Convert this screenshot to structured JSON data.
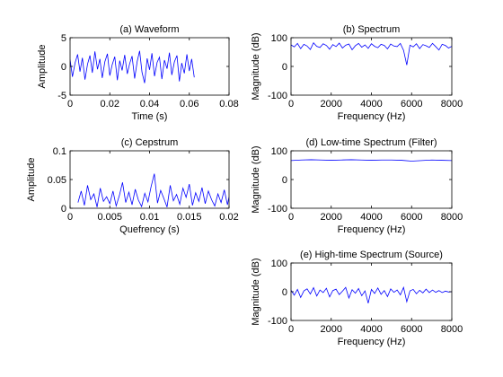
{
  "figure": {
    "background": "#ffffff",
    "line_color": "#0000ff",
    "axes_color": "#000000"
  },
  "chart_data": [
    {
      "id": "a",
      "type": "line",
      "title": "(a) Waveform",
      "xlabel": "Time (s)",
      "ylabel": "Amplitude",
      "xlim": [
        0,
        0.08
      ],
      "ylim": [
        -5,
        5
      ],
      "xticks": [
        "0",
        "0.02",
        "0.04",
        "0.06",
        "0.08"
      ],
      "xtick_values": [
        0,
        0.02,
        0.04,
        0.06,
        0.08
      ],
      "yticks": [
        "-5",
        "0",
        "5"
      ],
      "ytick_values": [
        -5,
        0,
        5
      ],
      "grid": false,
      "series": [
        {
          "x": [
            0,
            0.0012,
            0.0025,
            0.0038,
            0.005,
            0.0062,
            0.0075,
            0.0088,
            0.01,
            0.0112,
            0.0125,
            0.0138,
            0.015,
            0.0162,
            0.0175,
            0.0188,
            0.02,
            0.0212,
            0.0225,
            0.0238,
            0.025,
            0.0262,
            0.0275,
            0.0288,
            0.03,
            0.0312,
            0.0325,
            0.0338,
            0.035,
            0.0362,
            0.0375,
            0.0388,
            0.04,
            0.0412,
            0.0425,
            0.0438,
            0.045,
            0.0462,
            0.0475,
            0.0488,
            0.05,
            0.0512,
            0.0525,
            0.0538,
            0.055,
            0.0562,
            0.0575,
            0.0588,
            0.06,
            0.0612,
            0.0625
          ],
          "y": [
            1.2,
            -1.8,
            0.6,
            2.1,
            -0.9,
            1.5,
            -2.3,
            0.4,
            1.9,
            -1.1,
            2.6,
            -0.5,
            1.3,
            -2.0,
            0.8,
            2.2,
            -1.6,
            0.3,
            1.7,
            -2.4,
            1.0,
            -0.7,
            2.0,
            -1.3,
            0.5,
            1.8,
            -2.1,
            0.9,
            2.7,
            -1.0,
            -2.9,
            1.4,
            -0.6,
            2.3,
            -1.7,
            0.7,
            1.6,
            -2.2,
            1.1,
            -0.4,
            2.4,
            -1.5,
            0.8,
            1.9,
            -2.6,
            0.6,
            -1.2,
            2.1,
            -0.8,
            1.3,
            -1.9
          ]
        }
      ]
    },
    {
      "id": "b",
      "type": "line",
      "title": "(b) Spectrum",
      "xlabel": "Frequency (Hz)",
      "ylabel": "Magnitude (dB)",
      "xlim": [
        0,
        8000
      ],
      "ylim": [
        -100,
        100
      ],
      "xticks": [
        "0",
        "2000",
        "4000",
        "6000",
        "8000"
      ],
      "xtick_values": [
        0,
        2000,
        4000,
        6000,
        8000
      ],
      "yticks": [
        "-100",
        "0",
        "100"
      ],
      "ytick_values": [
        -100,
        0,
        100
      ],
      "grid": false,
      "series": [
        {
          "x": [
            0,
            160,
            320,
            480,
            640,
            800,
            960,
            1120,
            1280,
            1440,
            1600,
            1760,
            1920,
            2080,
            2240,
            2400,
            2560,
            2720,
            2880,
            3040,
            3200,
            3360,
            3520,
            3680,
            3840,
            4000,
            4160,
            4320,
            4480,
            4640,
            4800,
            4960,
            5120,
            5280,
            5440,
            5600,
            5760,
            5920,
            6080,
            6240,
            6400,
            6560,
            6720,
            6880,
            7040,
            7200,
            7360,
            7520,
            7680,
            7840,
            8000
          ],
          "y": [
            75,
            68,
            80,
            62,
            77,
            71,
            59,
            82,
            70,
            66,
            79,
            73,
            60,
            76,
            69,
            81,
            64,
            74,
            78,
            58,
            72,
            80,
            67,
            75,
            63,
            79,
            70,
            65,
            77,
            73,
            61,
            78,
            71,
            69,
            80,
            56,
            5,
            74,
            68,
            79,
            62,
            76,
            72,
            66,
            80,
            69,
            57,
            77,
            73,
            64,
            70
          ]
        }
      ]
    },
    {
      "id": "c",
      "type": "line",
      "title": "(c) Cepstrum",
      "xlabel": "Quefrency (s)",
      "ylabel": "Amplitude",
      "xlim": [
        0,
        0.02
      ],
      "ylim": [
        0,
        0.1
      ],
      "xticks": [
        "0",
        "0.005",
        "0.01",
        "0.015",
        "0.02"
      ],
      "xtick_values": [
        0,
        0.005,
        0.01,
        0.015,
        0.02
      ],
      "yticks": [
        "0",
        "0.05",
        "0.1"
      ],
      "ytick_values": [
        0,
        0.05,
        0.1
      ],
      "grid": false,
      "series": [
        {
          "x": [
            0.001,
            0.0014,
            0.0018,
            0.0022,
            0.0026,
            0.003,
            0.0034,
            0.0038,
            0.0042,
            0.0046,
            0.005,
            0.0054,
            0.0058,
            0.0062,
            0.0066,
            0.007,
            0.0074,
            0.0078,
            0.0082,
            0.0086,
            0.009,
            0.0094,
            0.0098,
            0.0102,
            0.0106,
            0.011,
            0.0114,
            0.0118,
            0.0122,
            0.0126,
            0.013,
            0.0134,
            0.0138,
            0.0142,
            0.0146,
            0.015,
            0.0154,
            0.0158,
            0.0162,
            0.0166,
            0.017,
            0.0174,
            0.0178,
            0.0182,
            0.0186,
            0.019,
            0.0194,
            0.0198,
            0.02
          ],
          "y": [
            0.01,
            0.03,
            0.005,
            0.04,
            0.015,
            0.025,
            0.002,
            0.035,
            0.012,
            0.02,
            0.008,
            0.03,
            0.004,
            0.022,
            0.045,
            0.01,
            0.028,
            0.006,
            0.033,
            0.014,
            0.003,
            0.026,
            0.011,
            0.038,
            0.06,
            0.009,
            0.031,
            0.017,
            0.002,
            0.04,
            0.013,
            0.024,
            0.007,
            0.035,
            0.019,
            0.042,
            0.005,
            0.027,
            0.012,
            0.036,
            0.008,
            0.03,
            0.015,
            0.004,
            0.025,
            0.01,
            0.032,
            0.006,
            0.02
          ]
        }
      ]
    },
    {
      "id": "d",
      "type": "line",
      "title": "(d) Low-time Spectrum (Filter)",
      "xlabel": "Frequency (Hz)",
      "ylabel": "Magnitude (dB)",
      "xlim": [
        0,
        8000
      ],
      "ylim": [
        -100,
        100
      ],
      "xticks": [
        "0",
        "2000",
        "4000",
        "6000",
        "8000"
      ],
      "xtick_values": [
        0,
        2000,
        4000,
        6000,
        8000
      ],
      "yticks": [
        "-100",
        "0",
        "100"
      ],
      "ytick_values": [
        -100,
        0,
        100
      ],
      "grid": false,
      "series": [
        {
          "x": [
            0,
            500,
            1000,
            1500,
            2000,
            2500,
            3000,
            3500,
            4000,
            4500,
            5000,
            5500,
            6000,
            6500,
            7000,
            7500,
            8000
          ],
          "y": [
            66,
            68,
            69,
            68,
            67,
            68,
            69,
            68,
            67,
            68,
            68,
            67,
            64,
            66,
            68,
            67,
            66
          ]
        }
      ]
    },
    {
      "id": "e",
      "type": "line",
      "title": "(e) High-time Spectrum (Source)",
      "xlabel": "Frequency (Hz)",
      "ylabel": "Magnitude (dB)",
      "xlim": [
        0,
        8000
      ],
      "ylim": [
        -100,
        100
      ],
      "xticks": [
        "0",
        "2000",
        "4000",
        "6000",
        "8000"
      ],
      "xtick_values": [
        0,
        2000,
        4000,
        6000,
        8000
      ],
      "yticks": [
        "-100",
        "0",
        "100"
      ],
      "ytick_values": [
        -100,
        0,
        100
      ],
      "grid": false,
      "series": [
        {
          "x": [
            0,
            160,
            320,
            480,
            640,
            800,
            960,
            1120,
            1280,
            1440,
            1600,
            1760,
            1920,
            2080,
            2240,
            2400,
            2560,
            2720,
            2880,
            3040,
            3200,
            3360,
            3520,
            3680,
            3840,
            4000,
            4160,
            4320,
            4480,
            4640,
            4800,
            4960,
            5120,
            5280,
            5440,
            5600,
            5760,
            5920,
            6080,
            6240,
            6400,
            6560,
            6720,
            6880,
            7040,
            7200,
            7360,
            7520,
            7680,
            7840,
            8000
          ],
          "y": [
            5,
            -12,
            8,
            -20,
            3,
            10,
            -8,
            14,
            -15,
            6,
            -3,
            12,
            -18,
            4,
            9,
            -10,
            2,
            15,
            -22,
            7,
            -5,
            11,
            -14,
            3,
            -40,
            8,
            -6,
            13,
            -9,
            4,
            -17,
            10,
            -2,
            6,
            -11,
            15,
            -35,
            3,
            8,
            -7,
            5,
            -4,
            9,
            -3,
            6,
            -2,
            4,
            -3,
            2,
            -1,
            0
          ]
        }
      ]
    }
  ]
}
